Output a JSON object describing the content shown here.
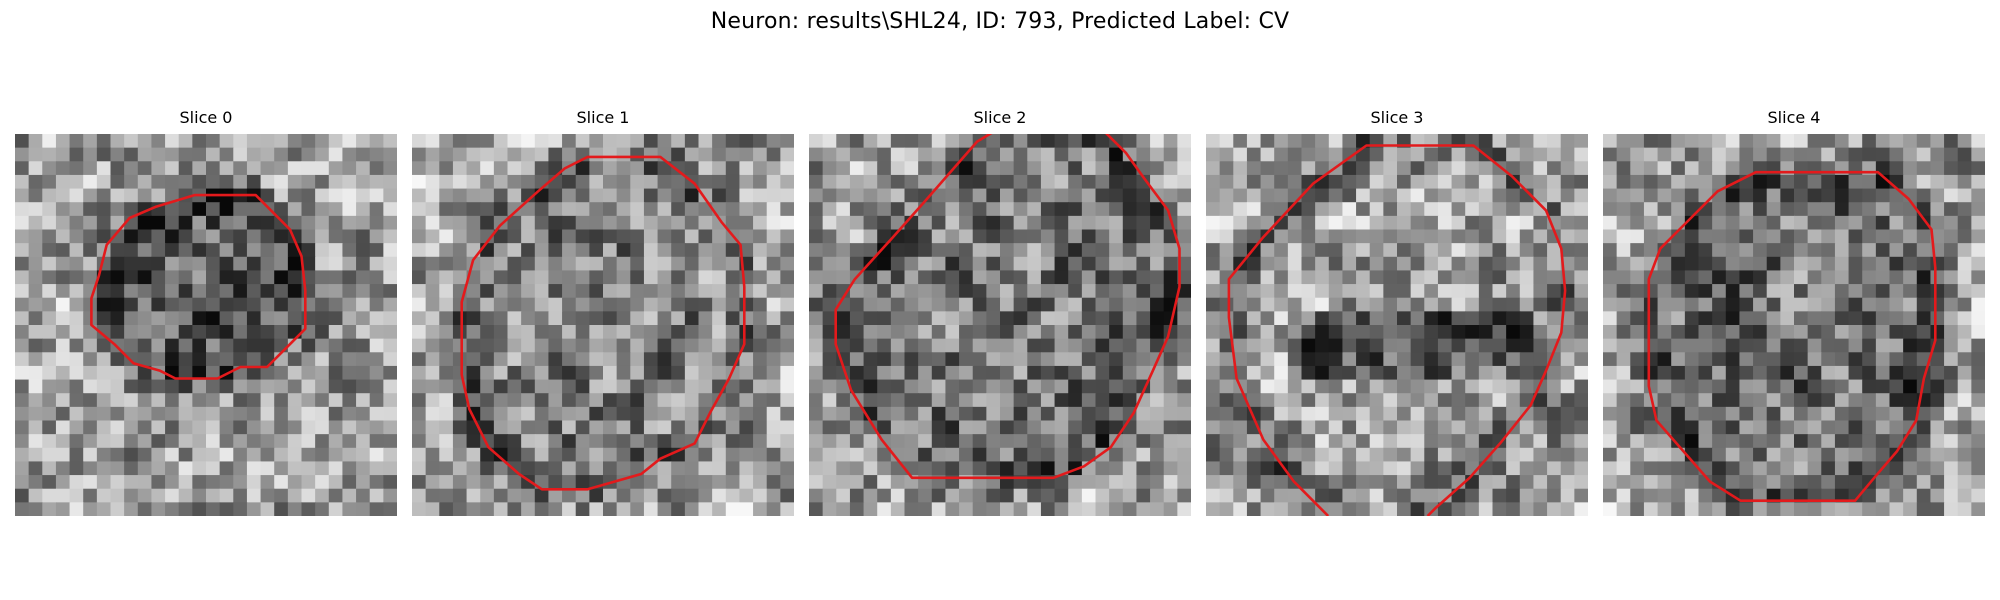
{
  "figure": {
    "title": "Neuron: results\\SHL24, ID: 793, Predicted Label: CV",
    "contour_color": "#e31a1c",
    "colormap": "grayscale",
    "panels": [
      {
        "title": "Slice 0",
        "seed": 11,
        "dark_center": true,
        "center_darkness": 0.55,
        "contour": [
          [
            0.47,
            0.16
          ],
          [
            0.63,
            0.16
          ],
          [
            0.72,
            0.25
          ],
          [
            0.75,
            0.32
          ],
          [
            0.76,
            0.41
          ],
          [
            0.76,
            0.51
          ],
          [
            0.71,
            0.56
          ],
          [
            0.66,
            0.61
          ],
          [
            0.59,
            0.61
          ],
          [
            0.53,
            0.64
          ],
          [
            0.42,
            0.64
          ],
          [
            0.38,
            0.62
          ],
          [
            0.31,
            0.6
          ],
          [
            0.26,
            0.55
          ],
          [
            0.2,
            0.5
          ],
          [
            0.2,
            0.43
          ],
          [
            0.22,
            0.37
          ],
          [
            0.24,
            0.29
          ],
          [
            0.3,
            0.22
          ],
          [
            0.37,
            0.19
          ]
        ]
      },
      {
        "title": "Slice 1",
        "seed": 23,
        "dark_center": false,
        "center_darkness": 0.25,
        "contour": [
          [
            0.46,
            0.06
          ],
          [
            0.65,
            0.06
          ],
          [
            0.74,
            0.13
          ],
          [
            0.81,
            0.23
          ],
          [
            0.86,
            0.29
          ],
          [
            0.87,
            0.4
          ],
          [
            0.87,
            0.55
          ],
          [
            0.83,
            0.64
          ],
          [
            0.78,
            0.73
          ],
          [
            0.74,
            0.81
          ],
          [
            0.65,
            0.85
          ],
          [
            0.6,
            0.89
          ],
          [
            0.53,
            0.91
          ],
          [
            0.46,
            0.93
          ],
          [
            0.34,
            0.93
          ],
          [
            0.28,
            0.89
          ],
          [
            0.2,
            0.82
          ],
          [
            0.15,
            0.72
          ],
          [
            0.13,
            0.63
          ],
          [
            0.13,
            0.44
          ],
          [
            0.16,
            0.33
          ],
          [
            0.23,
            0.24
          ],
          [
            0.33,
            0.15
          ],
          [
            0.4,
            0.09
          ]
        ]
      },
      {
        "title": "Slice 2",
        "seed": 37,
        "dark_center": true,
        "center_darkness": 0.35,
        "contour": [
          [
            0.44,
            0.02
          ],
          [
            0.49,
            -0.01
          ],
          [
            0.77,
            -0.01
          ],
          [
            0.83,
            0.05
          ],
          [
            0.88,
            0.12
          ],
          [
            0.94,
            0.2
          ],
          [
            0.97,
            0.3
          ],
          [
            0.97,
            0.4
          ],
          [
            0.94,
            0.53
          ],
          [
            0.9,
            0.62
          ],
          [
            0.85,
            0.73
          ],
          [
            0.79,
            0.82
          ],
          [
            0.72,
            0.87
          ],
          [
            0.64,
            0.9
          ],
          [
            0.27,
            0.9
          ],
          [
            0.19,
            0.8
          ],
          [
            0.11,
            0.67
          ],
          [
            0.07,
            0.55
          ],
          [
            0.07,
            0.46
          ],
          [
            0.12,
            0.38
          ],
          [
            0.22,
            0.27
          ],
          [
            0.3,
            0.18
          ]
        ]
      },
      {
        "title": "Slice 3",
        "seed": 51,
        "dark_center": false,
        "center_darkness": 0.15,
        "contour_open": true,
        "contour": [
          [
            0.32,
            1.0
          ],
          [
            0.23,
            0.91
          ],
          [
            0.15,
            0.8
          ],
          [
            0.08,
            0.64
          ],
          [
            0.06,
            0.48
          ],
          [
            0.06,
            0.38
          ],
          [
            0.15,
            0.27
          ],
          [
            0.28,
            0.13
          ],
          [
            0.42,
            0.03
          ],
          [
            0.7,
            0.03
          ],
          [
            0.8,
            0.11
          ],
          [
            0.89,
            0.2
          ],
          [
            0.93,
            0.3
          ],
          [
            0.94,
            0.41
          ],
          [
            0.93,
            0.52
          ],
          [
            0.89,
            0.62
          ],
          [
            0.85,
            0.71
          ],
          [
            0.77,
            0.81
          ],
          [
            0.69,
            0.9
          ],
          [
            0.6,
            0.98
          ],
          [
            0.58,
            1.0
          ]
        ]
      },
      {
        "title": "Slice 4",
        "seed": 67,
        "dark_center": true,
        "center_darkness": 0.4,
        "contour": [
          [
            0.4,
            0.1
          ],
          [
            0.72,
            0.1
          ],
          [
            0.8,
            0.17
          ],
          [
            0.86,
            0.25
          ],
          [
            0.87,
            0.35
          ],
          [
            0.87,
            0.54
          ],
          [
            0.84,
            0.64
          ],
          [
            0.82,
            0.75
          ],
          [
            0.77,
            0.83
          ],
          [
            0.71,
            0.9
          ],
          [
            0.66,
            0.96
          ],
          [
            0.36,
            0.96
          ],
          [
            0.28,
            0.91
          ],
          [
            0.14,
            0.75
          ],
          [
            0.12,
            0.66
          ],
          [
            0.12,
            0.38
          ],
          [
            0.15,
            0.3
          ],
          [
            0.23,
            0.22
          ],
          [
            0.3,
            0.15
          ]
        ]
      }
    ]
  }
}
